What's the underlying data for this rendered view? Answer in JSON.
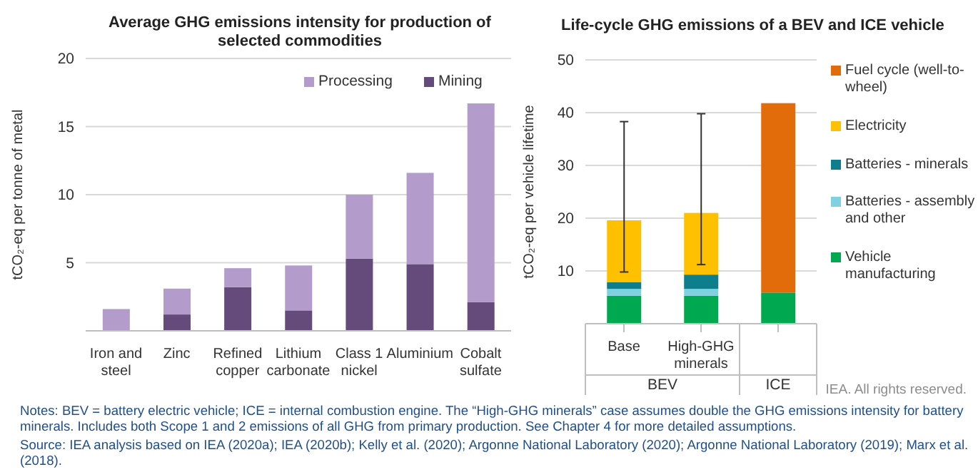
{
  "chart_data": [
    {
      "type": "bar",
      "stacked": true,
      "title": "Average GHG emissions intensity for production of selected commodities",
      "ylabel": "tCO₂-eq per tonne of metal",
      "categories": [
        "Iron and steel",
        "Zinc",
        "Refined copper",
        "Lithium carbonate",
        "Class 1 nickel",
        "Aluminium",
        "Cobalt sulfate"
      ],
      "series": [
        {
          "name": "Mining",
          "color": "#654a7c",
          "values": [
            0,
            1.2,
            3.2,
            1.5,
            5.3,
            4.9,
            2.1
          ]
        },
        {
          "name": "Processing",
          "color": "#b39ccb",
          "values": [
            1.6,
            1.9,
            1.4,
            3.3,
            4.7,
            6.7,
            14.6
          ]
        }
      ],
      "ylim": [
        0,
        20
      ],
      "yticks": [
        {
          "value": 0,
          "label": null
        },
        5,
        10,
        15,
        20
      ],
      "grid": "y",
      "legend": "top right",
      "annotations": [
        "Notes: BEV = battery electric vehicle; ICE = internal combustion engine. The “High-GHG minerals” case assumes double the GHG emissions intensity for battery minerals. Includes both Scope 1 and 2 emissions of all GHG from primary production. See Chapter 4 for more detailed assumptions.",
        "Source: IEA analysis based on IEA (2020a); IEA (2020b); Kelly et al. (2020); Argonne National Laboratory (2020); Argonne National Laboratory (2019); Marx et al. (2018)."
      ]
    },
    {
      "type": "bar",
      "stacked": true,
      "title": "Life-cycle GHG emissions of a BEV and ICE vehicle",
      "ylabel": "tCO₂-eq per vehicle lifetime",
      "categories": [
        "Base",
        "High-GHG minerals",
        null
      ],
      "series": [
        {
          "name": "Vehicle manufacturing",
          "color": "#00a84f",
          "values": [
            5.3,
            5.3,
            5.9
          ]
        },
        {
          "name": "Batteries - assembly and other",
          "color": "#7fd0e0",
          "values": [
            1.3,
            1.3,
            0
          ]
        },
        {
          "name": "Batteries - minerals",
          "color": "#0e7d8c",
          "values": [
            1.3,
            2.7,
            0
          ]
        },
        {
          "name": "Electricity",
          "color": "#ffc000",
          "values": [
            11.7,
            11.7,
            0
          ],
          "errors": [
            [
              9.8,
              38.3
            ],
            [
              11.2,
              39.8
            ],
            null
          ]
        },
        {
          "name": "Fuel cycle (well-to-wheel)",
          "color": "#e36c0a",
          "values": [
            0,
            0,
            35.9
          ]
        }
      ],
      "ylim": [
        0,
        50
      ],
      "yticks": [
        {
          "value": 0,
          "label": null
        },
        10,
        20,
        30,
        40,
        50
      ],
      "grid": "y",
      "legend": "right",
      "annotations": [
        "BEV",
        "ICE",
        "IEA. All rights reserved."
      ]
    }
  ]
}
